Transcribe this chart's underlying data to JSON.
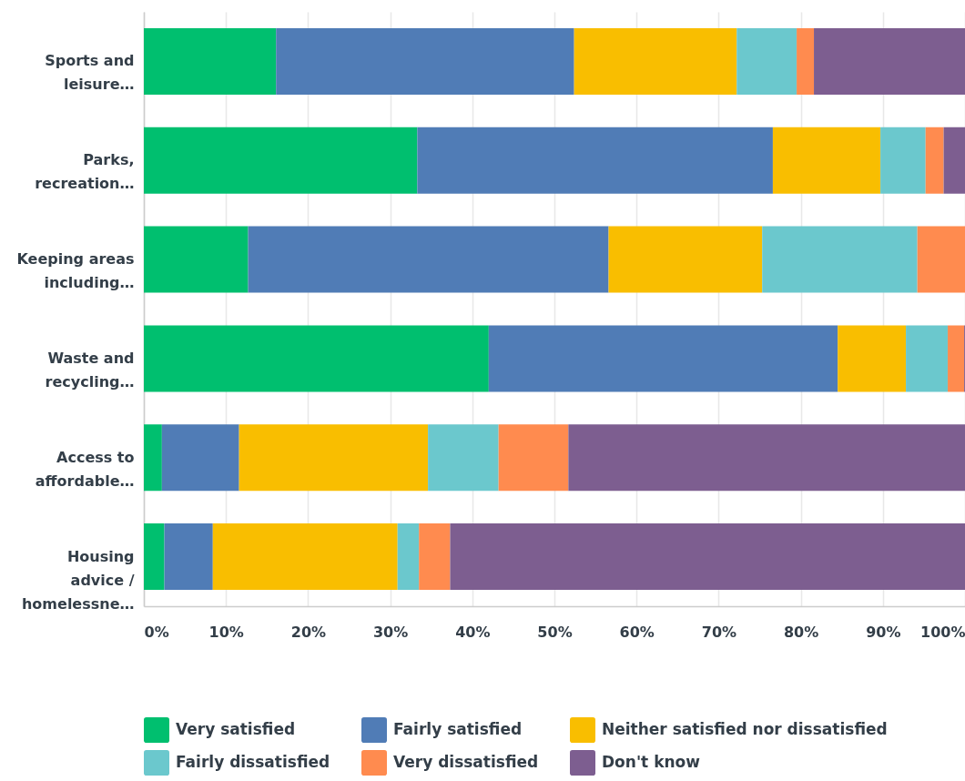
{
  "chart_data": {
    "type": "bar",
    "orientation": "horizontal",
    "stacked": true,
    "categories": [
      "Sports and leisure…",
      "Parks, recreation…",
      "Keeping areas including…",
      "Waste and recycling…",
      "Access to affordable…",
      "Housing advice / homelessne…"
    ],
    "series": [
      {
        "name": "Very satisfied",
        "color": "#00bf6f",
        "values": [
          16.1,
          33.3,
          12.7,
          42.0,
          2.2,
          2.5
        ]
      },
      {
        "name": "Fairly satisfied",
        "color": "#507cb6",
        "values": [
          36.3,
          43.3,
          43.9,
          42.5,
          9.4,
          5.9
        ]
      },
      {
        "name": "Neither satisfied nor dissatisfied",
        "color": "#f9be00",
        "values": [
          19.8,
          13.1,
          18.7,
          8.3,
          23.0,
          22.5
        ]
      },
      {
        "name": "Fairly dissatisfied",
        "color": "#6bc8cd",
        "values": [
          7.3,
          5.5,
          18.9,
          5.1,
          8.6,
          2.6
        ]
      },
      {
        "name": "Very dissatisfied",
        "color": "#ff8b4f",
        "values": [
          2.1,
          2.2,
          5.8,
          2.0,
          8.5,
          3.8
        ]
      },
      {
        "name": "Don't know",
        "color": "#7d5e90",
        "values": [
          18.4,
          2.6,
          null,
          0.1,
          48.3,
          62.7
        ]
      }
    ],
    "xlim": [
      0,
      100
    ],
    "xticks": [
      {
        "value": 0,
        "label": "0%"
      },
      {
        "value": 10,
        "label": "10%"
      },
      {
        "value": 20,
        "label": "20%"
      },
      {
        "value": 30,
        "label": "30%"
      },
      {
        "value": 40,
        "label": "40%"
      },
      {
        "value": 50,
        "label": "50%"
      },
      {
        "value": 60,
        "label": "60%"
      },
      {
        "value": 70,
        "label": "70%"
      },
      {
        "value": 80,
        "label": "80%"
      },
      {
        "value": 90,
        "label": "90%"
      },
      {
        "value": 100,
        "label": "100%"
      }
    ],
    "grid": "x",
    "legend": "bottom"
  }
}
